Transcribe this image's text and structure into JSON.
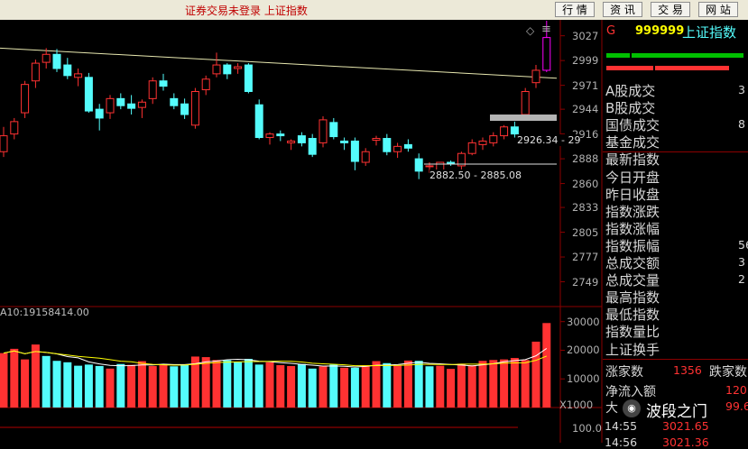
{
  "window": {
    "title": "证券交易未登录 上证指数",
    "buttons": [
      "行 情",
      "资 讯",
      "交 易",
      "网 站"
    ]
  },
  "chart_data": {
    "type": "candlestick",
    "price_axis": {
      "ticks": [
        3027,
        2999,
        2971,
        2944,
        2916,
        2888,
        2860,
        2833,
        2805,
        2777,
        2749
      ],
      "range": [
        2721,
        3045
      ]
    },
    "candles": [
      {
        "o": 2896,
        "h": 2924,
        "l": 2890,
        "c": 2914
      },
      {
        "o": 2916,
        "h": 2934,
        "l": 2910,
        "c": 2930
      },
      {
        "o": 2940,
        "h": 2976,
        "l": 2934,
        "c": 2972
      },
      {
        "o": 2976,
        "h": 3000,
        "l": 2968,
        "c": 2996
      },
      {
        "o": 2997,
        "h": 3013,
        "l": 2990,
        "c": 3006
      },
      {
        "o": 3006,
        "h": 3012,
        "l": 2986,
        "c": 2990
      },
      {
        "o": 2994,
        "h": 3002,
        "l": 2978,
        "c": 2982
      },
      {
        "o": 2980,
        "h": 2990,
        "l": 2970,
        "c": 2984
      },
      {
        "o": 2980,
        "h": 2985,
        "l": 2940,
        "c": 2942
      },
      {
        "o": 2944,
        "h": 2950,
        "l": 2920,
        "c": 2934
      },
      {
        "o": 2940,
        "h": 2960,
        "l": 2933,
        "c": 2956
      },
      {
        "o": 2956,
        "h": 2962,
        "l": 2944,
        "c": 2948
      },
      {
        "o": 2950,
        "h": 2960,
        "l": 2938,
        "c": 2945
      },
      {
        "o": 2946,
        "h": 2955,
        "l": 2934,
        "c": 2952
      },
      {
        "o": 2956,
        "h": 2980,
        "l": 2950,
        "c": 2976
      },
      {
        "o": 2976,
        "h": 2984,
        "l": 2965,
        "c": 2970
      },
      {
        "o": 2956,
        "h": 2962,
        "l": 2944,
        "c": 2948
      },
      {
        "o": 2950,
        "h": 2956,
        "l": 2933,
        "c": 2938
      },
      {
        "o": 2926,
        "h": 2968,
        "l": 2922,
        "c": 2964
      },
      {
        "o": 2966,
        "h": 2982,
        "l": 2960,
        "c": 2978
      },
      {
        "o": 2984,
        "h": 3008,
        "l": 2980,
        "c": 2994
      },
      {
        "o": 2994,
        "h": 2996,
        "l": 2978,
        "c": 2984
      },
      {
        "o": 2990,
        "h": 2996,
        "l": 2984,
        "c": 2992
      },
      {
        "o": 2994,
        "h": 2996,
        "l": 2962,
        "c": 2964
      },
      {
        "o": 2949,
        "h": 2955,
        "l": 2910,
        "c": 2912
      },
      {
        "o": 2912,
        "h": 2918,
        "l": 2904,
        "c": 2916
      },
      {
        "o": 2916,
        "h": 2920,
        "l": 2908,
        "c": 2914
      },
      {
        "o": 2906,
        "h": 2910,
        "l": 2898,
        "c": 2908
      },
      {
        "o": 2914,
        "h": 2918,
        "l": 2902,
        "c": 2906
      },
      {
        "o": 2911,
        "h": 2916,
        "l": 2890,
        "c": 2893
      },
      {
        "o": 2906,
        "h": 2936,
        "l": 2901,
        "c": 2932
      },
      {
        "o": 2929,
        "h": 2934,
        "l": 2910,
        "c": 2913
      },
      {
        "o": 2908,
        "h": 2912,
        "l": 2898,
        "c": 2906
      },
      {
        "o": 2908,
        "h": 2912,
        "l": 2875,
        "c": 2885
      },
      {
        "o": 2884,
        "h": 2900,
        "l": 2880,
        "c": 2896
      },
      {
        "o": 2909,
        "h": 2914,
        "l": 2903,
        "c": 2911
      },
      {
        "o": 2911,
        "h": 2916,
        "l": 2892,
        "c": 2896
      },
      {
        "o": 2896,
        "h": 2906,
        "l": 2889,
        "c": 2902
      },
      {
        "o": 2904,
        "h": 2910,
        "l": 2896,
        "c": 2900
      },
      {
        "o": 2888,
        "h": 2894,
        "l": 2865,
        "c": 2874
      },
      {
        "o": 2880,
        "h": 2884,
        "l": 2872,
        "c": 2880
      },
      {
        "o": 2871,
        "h": 2884,
        "l": 2865,
        "c": 2884
      },
      {
        "o": 2884,
        "h": 2886,
        "l": 2880,
        "c": 2882
      },
      {
        "o": 2880,
        "h": 2896,
        "l": 2876,
        "c": 2894
      },
      {
        "o": 2894,
        "h": 2910,
        "l": 2892,
        "c": 2906
      },
      {
        "o": 2904,
        "h": 2912,
        "l": 2898,
        "c": 2908
      },
      {
        "o": 2906,
        "h": 2918,
        "l": 2902,
        "c": 2914
      },
      {
        "o": 2914,
        "h": 2926,
        "l": 2910,
        "c": 2924
      },
      {
        "o": 2924,
        "h": 2930,
        "l": 2912,
        "c": 2916
      },
      {
        "o": 2938,
        "h": 2968,
        "l": 2935,
        "c": 2964
      },
      {
        "o": 2974,
        "h": 2994,
        "l": 2968,
        "c": 2988
      },
      {
        "o": 2988,
        "h": 3044,
        "l": 2986,
        "c": 3025
      }
    ],
    "ma_line": {
      "from": 3013,
      "to": 2979
    },
    "annotations": [
      "2926.34 - 29",
      "2882.50 - 2885.08"
    ],
    "volume_title": "A10:19158414.00",
    "volume_axis": {
      "ticks": [
        "30000",
        "20000",
        "10000"
      ],
      "unit": "X1000",
      "range": [
        0,
        34000
      ]
    },
    "volumes": [
      19000,
      20500,
      16800,
      22000,
      18000,
      16300,
      15800,
      14600,
      15000,
      14500,
      13600,
      15200,
      14900,
      16200,
      14500,
      15000,
      14400,
      14900,
      17800,
      17600,
      16600,
      16500,
      15800,
      17000,
      15000,
      15800,
      14800,
      14500,
      15200,
      13600,
      14400,
      15000,
      13900,
      13900,
      14700,
      16200,
      15500,
      14600,
      16400,
      16300,
      14400,
      14600,
      13500,
      15300,
      14800,
      16300,
      16600,
      16800,
      17300,
      16600,
      23000,
      29500
    ],
    "volume_colors_red": [
      1,
      1,
      1,
      1,
      0,
      0,
      0,
      0,
      0,
      0,
      1,
      0,
      1,
      1,
      1,
      1,
      0,
      0,
      1,
      1,
      1,
      0,
      0,
      0,
      0,
      1,
      1,
      1,
      0,
      0,
      1,
      0,
      1,
      0,
      1,
      1,
      0,
      1,
      1,
      0,
      0,
      1,
      1,
      1,
      1,
      1,
      1,
      1,
      1,
      1,
      1,
      1
    ],
    "lower_axis_tick": "100.0"
  },
  "right_panel": {
    "header_letter": "G",
    "code": "999999",
    "name": "上证指数",
    "labels": [
      {
        "text": "A股成交",
        "val": "3"
      },
      {
        "text": "B股成交",
        "val": ""
      },
      {
        "text": "国债成交",
        "val": "8"
      },
      {
        "text": "基金成交",
        "val": ""
      },
      {
        "text": "最新指数",
        "val": ""
      },
      {
        "text": "今日开盘",
        "val": ""
      },
      {
        "text": "昨日收盘",
        "val": ""
      },
      {
        "text": "指数涨跌",
        "val": ""
      },
      {
        "text": "指数涨幅",
        "val": ""
      },
      {
        "text": "指数振幅",
        "val": "56"
      },
      {
        "text": "总成交额",
        "val": "3"
      },
      {
        "text": "总成交量",
        "val": "2"
      },
      {
        "text": "最高指数",
        "val": ""
      },
      {
        "text": "最低指数",
        "val": ""
      },
      {
        "text": "指数量比",
        "val": ""
      },
      {
        "text": "上证换手",
        "val": ""
      }
    ],
    "up_label": "涨家数",
    "up_count": "1356",
    "down_label": "跌家数",
    "inflow_label": "净流入额",
    "inflow_val": "120.",
    "big_label": "大",
    "big_val": "99.6",
    "ticks": [
      {
        "time": "14:55",
        "price": "3021.65"
      },
      {
        "time": "14:56",
        "price": "3021.36"
      }
    ],
    "watermark": "波段之门",
    "colors": {
      "green": "#00c000",
      "red": "#ff3232",
      "cyan": "#54fcfc",
      "magenta": "#ff00ff",
      "yellow": "#ffff00"
    }
  }
}
